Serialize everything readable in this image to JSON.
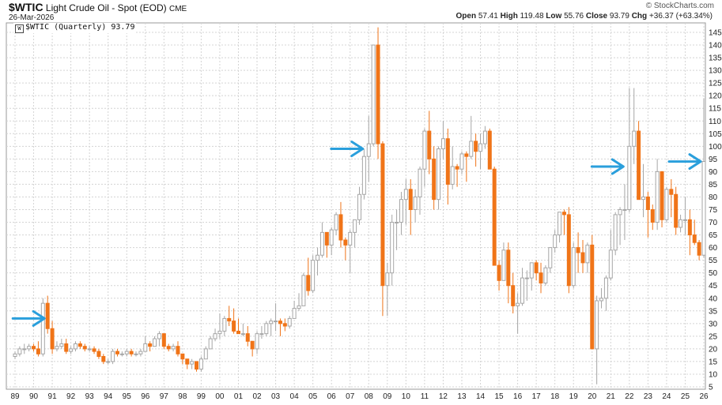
{
  "header": {
    "symbol": "$WTIC",
    "name": "Light Crude Oil - Spot (EOD)",
    "exchange": "CME",
    "date": "26-Mar-2026",
    "brand": "© StockCharts.com",
    "open_label": "Open",
    "open": "57.41",
    "high_label": "High",
    "high": "119.48",
    "low_label": "Low",
    "low": "55.76",
    "close_label": "Close",
    "close": "93.79",
    "chg_label": "Chg",
    "chg": "+36.37 (+63.34%)"
  },
  "legend": {
    "text": "$WTIC (Quarterly) 93.79"
  },
  "colors": {
    "up": "#a6a6a6",
    "down": "#f07418",
    "grid": "#d4d4d4",
    "arrow": "#2a9fdc"
  },
  "chart_data": {
    "type": "candlestick",
    "interval": "quarterly",
    "x_ticks": [
      "89",
      "90",
      "91",
      "92",
      "93",
      "94",
      "95",
      "96",
      "97",
      "98",
      "99",
      "00",
      "01",
      "02",
      "03",
      "04",
      "05",
      "06",
      "07",
      "08",
      "09",
      "10",
      "11",
      "12",
      "13",
      "14",
      "15",
      "16",
      "17",
      "18",
      "19",
      "20",
      "21",
      "22",
      "23",
      "24",
      "25",
      "26"
    ],
    "y_ticks": [
      5,
      10,
      15,
      20,
      25,
      30,
      35,
      40,
      45,
      50,
      55,
      60,
      65,
      70,
      75,
      80,
      85,
      90,
      95,
      100,
      105,
      110,
      115,
      120,
      125,
      130,
      135,
      140,
      145
    ],
    "ylim": [
      3,
      148
    ],
    "grid": true,
    "candles": [
      [
        1989.0,
        17,
        19,
        16,
        18
      ],
      [
        1989.25,
        18,
        21,
        17,
        20
      ],
      [
        1989.5,
        20,
        22,
        18,
        20
      ],
      [
        1989.75,
        20,
        22,
        19,
        21
      ],
      [
        1990.0,
        21,
        22,
        19,
        20
      ],
      [
        1990.25,
        20,
        23,
        17,
        18
      ],
      [
        1990.5,
        18,
        40,
        17,
        38
      ],
      [
        1990.75,
        38,
        41,
        26,
        28
      ],
      [
        1991.0,
        28,
        31,
        18,
        20
      ],
      [
        1991.25,
        20,
        23,
        19,
        21
      ],
      [
        1991.5,
        21,
        24,
        20,
        22
      ],
      [
        1991.75,
        22,
        24,
        18,
        19
      ],
      [
        1992.0,
        19,
        21,
        18,
        20
      ],
      [
        1992.25,
        20,
        23,
        19,
        22
      ],
      [
        1992.5,
        22,
        23,
        20,
        21
      ],
      [
        1992.75,
        21,
        22,
        19,
        20
      ],
      [
        1993.0,
        20,
        21,
        19,
        20
      ],
      [
        1993.25,
        20,
        21,
        18,
        19
      ],
      [
        1993.5,
        19,
        20,
        16,
        17
      ],
      [
        1993.75,
        17,
        18,
        14,
        15
      ],
      [
        1994.0,
        15,
        16,
        14,
        15
      ],
      [
        1994.25,
        15,
        20,
        14,
        19
      ],
      [
        1994.5,
        19,
        20,
        17,
        18
      ],
      [
        1994.75,
        18,
        19,
        17,
        18
      ],
      [
        1995.0,
        18,
        20,
        17,
        19
      ],
      [
        1995.25,
        19,
        20,
        17,
        18
      ],
      [
        1995.5,
        18,
        19,
        17,
        18
      ],
      [
        1995.75,
        18,
        20,
        17,
        19
      ],
      [
        1996.0,
        19,
        25,
        19,
        22
      ],
      [
        1996.25,
        22,
        23,
        19,
        21
      ],
      [
        1996.5,
        21,
        25,
        21,
        24
      ],
      [
        1996.75,
        24,
        27,
        21,
        26
      ],
      [
        1997.0,
        26,
        26,
        20,
        21
      ],
      [
        1997.25,
        21,
        22,
        19,
        20
      ],
      [
        1997.5,
        20,
        22,
        19,
        21
      ],
      [
        1997.75,
        21,
        23,
        17,
        18
      ],
      [
        1998.0,
        18,
        18,
        14,
        16
      ],
      [
        1998.25,
        16,
        16,
        12,
        14
      ],
      [
        1998.5,
        14,
        16,
        12,
        15
      ],
      [
        1998.75,
        15,
        15,
        11,
        12
      ],
      [
        1999.0,
        12,
        17,
        11,
        16
      ],
      [
        1999.25,
        16,
        21,
        16,
        20
      ],
      [
        1999.5,
        20,
        25,
        20,
        24
      ],
      [
        1999.75,
        24,
        28,
        23,
        26
      ],
      [
        2000.0,
        26,
        34,
        24,
        27
      ],
      [
        2000.25,
        27,
        33,
        25,
        32
      ],
      [
        2000.5,
        32,
        37,
        29,
        31
      ],
      [
        2000.75,
        31,
        36,
        26,
        27
      ],
      [
        2001.0,
        27,
        32,
        26,
        26
      ],
      [
        2001.25,
        26,
        30,
        25,
        26
      ],
      [
        2001.5,
        26,
        29,
        21,
        23
      ],
      [
        2001.75,
        23,
        23,
        17,
        20
      ],
      [
        2002.0,
        20,
        27,
        18,
        26
      ],
      [
        2002.25,
        26,
        29,
        24,
        26
      ],
      [
        2002.5,
        26,
        31,
        25,
        30
      ],
      [
        2002.75,
        30,
        32,
        25,
        31
      ],
      [
        2003.0,
        31,
        38,
        27,
        31
      ],
      [
        2003.25,
        31,
        32,
        25,
        30
      ],
      [
        2003.5,
        30,
        32,
        27,
        29
      ],
      [
        2003.75,
        29,
        33,
        28,
        32
      ],
      [
        2004.0,
        32,
        39,
        32,
        36
      ],
      [
        2004.25,
        36,
        42,
        35,
        37
      ],
      [
        2004.5,
        37,
        50,
        37,
        49
      ],
      [
        2004.75,
        49,
        56,
        41,
        43
      ],
      [
        2005.0,
        43,
        57,
        42,
        55
      ],
      [
        2005.25,
        55,
        60,
        49,
        57
      ],
      [
        2005.5,
        57,
        70,
        56,
        66
      ],
      [
        2005.75,
        66,
        66,
        56,
        61
      ],
      [
        2006.0,
        61,
        68,
        57,
        67
      ],
      [
        2006.25,
        67,
        74,
        65,
        73
      ],
      [
        2006.5,
        73,
        78,
        60,
        63
      ],
      [
        2006.75,
        63,
        64,
        55,
        61
      ],
      [
        2007.0,
        61,
        67,
        50,
        66
      ],
      [
        2007.25,
        66,
        71,
        60,
        71
      ],
      [
        2007.5,
        71,
        84,
        69,
        81
      ],
      [
        2007.75,
        81,
        99,
        79,
        96
      ],
      [
        2008.0,
        96,
        112,
        86,
        101
      ],
      [
        2008.25,
        101,
        140,
        100,
        140
      ],
      [
        2008.5,
        140,
        147,
        95,
        101
      ],
      [
        2008.75,
        101,
        102,
        33,
        45
      ],
      [
        2009.0,
        45,
        54,
        33,
        50
      ],
      [
        2009.25,
        50,
        73,
        45,
        70
      ],
      [
        2009.5,
        70,
        75,
        59,
        70
      ],
      [
        2009.75,
        70,
        82,
        65,
        79
      ],
      [
        2010.0,
        79,
        87,
        69,
        83
      ],
      [
        2010.25,
        83,
        87,
        65,
        75
      ],
      [
        2010.5,
        75,
        83,
        70,
        80
      ],
      [
        2010.75,
        80,
        92,
        73,
        91
      ],
      [
        2011.0,
        91,
        107,
        84,
        106
      ],
      [
        2011.25,
        106,
        114,
        89,
        95
      ],
      [
        2011.5,
        95,
        100,
        75,
        79
      ],
      [
        2011.75,
        79,
        100,
        75,
        99
      ],
      [
        2012.0,
        99,
        110,
        95,
        103
      ],
      [
        2012.25,
        103,
        107,
        77,
        85
      ],
      [
        2012.5,
        85,
        100,
        83,
        92
      ],
      [
        2012.75,
        92,
        93,
        84,
        91
      ],
      [
        2013.0,
        91,
        98,
        89,
        97
      ],
      [
        2013.25,
        97,
        98,
        86,
        96
      ],
      [
        2013.5,
        96,
        112,
        95,
        102
      ],
      [
        2013.75,
        102,
        105,
        92,
        98
      ],
      [
        2014.0,
        98,
        105,
        91,
        101
      ],
      [
        2014.25,
        101,
        108,
        99,
        106
      ],
      [
        2014.5,
        106,
        107,
        91,
        91
      ],
      [
        2014.75,
        91,
        92,
        53,
        53
      ],
      [
        2015.0,
        53,
        55,
        43,
        47
      ],
      [
        2015.25,
        47,
        62,
        47,
        59
      ],
      [
        2015.5,
        59,
        62,
        38,
        45
      ],
      [
        2015.75,
        45,
        50,
        34,
        37
      ],
      [
        2016.0,
        37,
        42,
        26,
        38
      ],
      [
        2016.25,
        38,
        52,
        37,
        48
      ],
      [
        2016.5,
        48,
        51,
        39,
        48
      ],
      [
        2016.75,
        48,
        54,
        43,
        54
      ],
      [
        2017.0,
        54,
        55,
        47,
        50
      ],
      [
        2017.25,
        50,
        54,
        42,
        46
      ],
      [
        2017.5,
        46,
        53,
        45,
        52
      ],
      [
        2017.75,
        52,
        60,
        50,
        60
      ],
      [
        2018.0,
        60,
        67,
        58,
        65
      ],
      [
        2018.25,
        65,
        73,
        62,
        74
      ],
      [
        2018.5,
        74,
        75,
        65,
        73
      ],
      [
        2018.75,
        73,
        76,
        42,
        45
      ],
      [
        2019.0,
        45,
        62,
        44,
        60
      ],
      [
        2019.25,
        60,
        66,
        50,
        58
      ],
      [
        2019.5,
        58,
        63,
        50,
        54
      ],
      [
        2019.75,
        54,
        62,
        50,
        61
      ],
      [
        2020.0,
        61,
        65,
        20,
        20
      ],
      [
        2020.25,
        20,
        41,
        6,
        39
      ],
      [
        2020.5,
        39,
        44,
        36,
        40
      ],
      [
        2020.75,
        40,
        49,
        35,
        48
      ],
      [
        2021.0,
        48,
        67,
        47,
        59
      ],
      [
        2021.25,
        59,
        74,
        57,
        73
      ],
      [
        2021.5,
        73,
        76,
        61,
        75
      ],
      [
        2021.75,
        75,
        85,
        63,
        75
      ],
      [
        2022.0,
        75,
        123,
        74,
        100
      ],
      [
        2022.25,
        100,
        123,
        93,
        106
      ],
      [
        2022.5,
        106,
        110,
        79,
        79
      ],
      [
        2022.75,
        79,
        93,
        72,
        80
      ],
      [
        2023.0,
        80,
        82,
        64,
        75
      ],
      [
        2023.25,
        75,
        77,
        67,
        70
      ],
      [
        2023.5,
        70,
        95,
        67,
        90
      ],
      [
        2023.75,
        90,
        90,
        68,
        71
      ],
      [
        2024.0,
        71,
        84,
        70,
        83
      ],
      [
        2024.25,
        83,
        87,
        72,
        81
      ],
      [
        2024.5,
        81,
        84,
        65,
        68
      ],
      [
        2024.75,
        68,
        73,
        66,
        71
      ],
      [
        2025.0,
        71,
        80,
        65,
        71
      ],
      [
        2025.25,
        71,
        75,
        57,
        65
      ],
      [
        2025.5,
        65,
        71,
        61,
        62
      ],
      [
        2025.75,
        62,
        63,
        55,
        57
      ],
      [
        2026.0,
        57,
        119,
        56,
        94
      ]
    ],
    "annotations": [
      {
        "type": "arrow",
        "target_date": 1990.75,
        "target_value": 32
      },
      {
        "type": "arrow",
        "target_date": 2007.85,
        "target_value": 99
      },
      {
        "type": "arrow",
        "target_date": 2021.85,
        "target_value": 92
      },
      {
        "type": "arrow",
        "target_date": 2026.0,
        "target_value": 94
      }
    ]
  }
}
